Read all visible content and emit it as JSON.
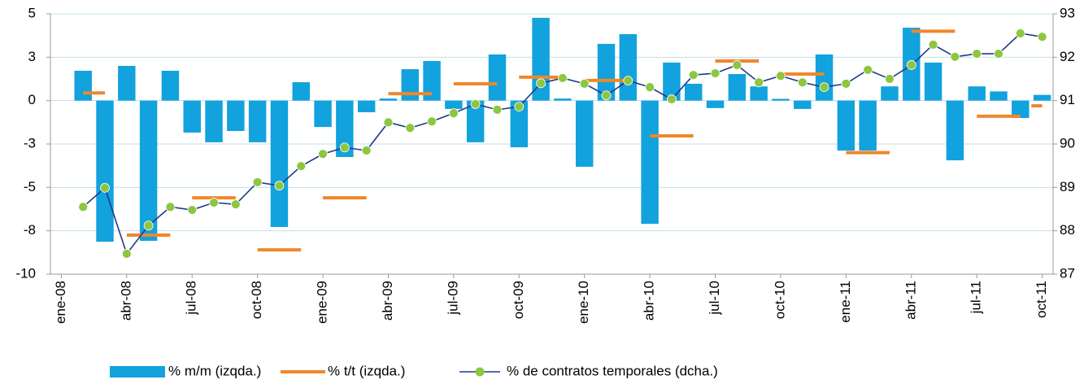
{
  "chart_data": {
    "type": "combo",
    "categories": [
      "ene-08",
      null,
      null,
      "abr-08",
      null,
      null,
      "jul-08",
      null,
      null,
      "oct-08",
      null,
      null,
      "ene-09",
      null,
      null,
      "abr-09",
      null,
      null,
      "jul-09",
      null,
      null,
      "oct-09",
      null,
      null,
      "ene-10",
      null,
      null,
      "abr-10",
      null,
      null,
      "jul-10",
      null,
      null,
      "oct-10",
      null,
      null,
      "ene-11",
      null,
      null,
      "abr-11",
      null,
      null,
      "jul-11",
      null,
      null,
      "oct-11"
    ],
    "ylim": [
      -10,
      5
    ],
    "yticks": [
      5,
      {
        "value": 2.5,
        "label": "3"
      },
      0,
      {
        "value": -2.5,
        "label": "-3"
      },
      -5,
      {
        "value": -7.5,
        "label": "-8"
      },
      -10
    ],
    "y2lim": [
      87,
      93
    ],
    "y2ticks": [
      87,
      88,
      89,
      90,
      91,
      92,
      93
    ],
    "grid": true,
    "series": [
      {
        "name": "% m/m (izqda.)",
        "type": "bar",
        "color": "#12a2de",
        "values": [
          null,
          1.72,
          -8.13,
          2.0,
          -8.08,
          1.72,
          -1.84,
          -2.4,
          -1.75,
          -2.4,
          -7.28,
          1.06,
          -1.52,
          -3.25,
          -0.67,
          0.12,
          1.81,
          2.28,
          -0.48,
          -2.4,
          2.66,
          -2.69,
          4.77,
          0.12,
          -3.81,
          3.27,
          3.83,
          -7.1,
          2.19,
          0.97,
          -0.43,
          1.53,
          0.82,
          0.1,
          -0.48,
          2.66,
          -2.88,
          -2.88,
          0.82,
          4.2,
          2.19,
          -3.44,
          0.82,
          0.53,
          -1.0,
          0.33
        ]
      },
      {
        "name": "% t/t (izqda.)",
        "type": "step",
        "color": "#f0872a",
        "values": [
          null,
          0.44,
          0.44,
          -7.75,
          -7.75,
          -7.75,
          -5.6,
          -5.6,
          -5.6,
          -8.6,
          -8.6,
          -8.6,
          -5.6,
          -5.6,
          -5.6,
          0.4,
          0.4,
          0.4,
          0.97,
          0.97,
          0.97,
          1.35,
          1.35,
          1.35,
          1.16,
          1.16,
          1.16,
          -2.03,
          -2.03,
          -2.03,
          2.28,
          2.28,
          2.28,
          1.53,
          1.53,
          1.53,
          -3.0,
          -3.0,
          -3.0,
          4.0,
          4.0,
          4.0,
          -0.9,
          -0.9,
          -0.9,
          -0.3
        ]
      },
      {
        "name": "% de contratos temporales (dcha.)",
        "type": "line",
        "axis": "y2",
        "color": "#1f3a87",
        "marker_color": "#8dc63f",
        "values": [
          null,
          88.55,
          88.99,
          87.47,
          88.12,
          88.55,
          88.48,
          88.65,
          88.61,
          89.12,
          89.04,
          89.49,
          89.77,
          89.92,
          89.85,
          90.5,
          90.37,
          90.52,
          90.71,
          90.92,
          90.79,
          90.86,
          91.4,
          91.52,
          91.39,
          91.12,
          91.46,
          91.31,
          91.03,
          91.59,
          91.63,
          91.82,
          91.42,
          91.57,
          91.42,
          91.31,
          91.39,
          91.71,
          91.5,
          91.82,
          92.29,
          92.01,
          92.08,
          92.08,
          92.55,
          92.47
        ]
      }
    ]
  }
}
